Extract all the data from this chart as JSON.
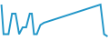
{
  "x": [
    0,
    0.3,
    1,
    1.5,
    2,
    2.5,
    3,
    3.5,
    4,
    4.3,
    4.6,
    5,
    5.5,
    6,
    7,
    8,
    9,
    10,
    11,
    12,
    13,
    14,
    14.5,
    15
  ],
  "y": [
    75,
    10,
    10,
    55,
    55,
    10,
    25,
    25,
    55,
    55,
    10,
    10,
    30,
    35,
    40,
    45,
    50,
    55,
    60,
    65,
    70,
    75,
    10,
    5
  ],
  "line_color": "#2196c8",
  "line_width": 1.4,
  "bg_color": "#ffffff"
}
